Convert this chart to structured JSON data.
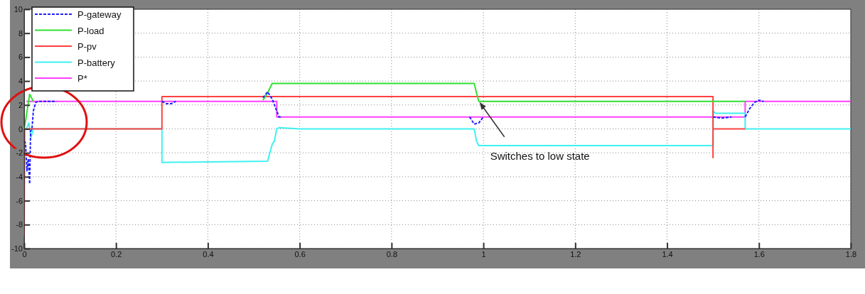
{
  "chart_data": {
    "type": "line",
    "xlim": [
      0,
      1.8
    ],
    "xticks": [
      0,
      0.2,
      0.4,
      0.6,
      0.8,
      1,
      1.2,
      1.4,
      1.6,
      1.8
    ],
    "ylim": [
      -10,
      10
    ],
    "yticks": [
      -10,
      -8,
      -6,
      -4,
      -2,
      0,
      2,
      4,
      6,
      8,
      10
    ],
    "grid": true,
    "legend": "top left",
    "series": [
      {
        "name": "P-gateway",
        "color": "#2020ff",
        "line_style": "dashed",
        "x": [
          0,
          0.003,
          0.006,
          0.009,
          0.012,
          0.014,
          0.017,
          0.02,
          0.025,
          0.03,
          0.045,
          0.07,
          0.071,
          0.3,
          0.31,
          0.32,
          0.33,
          0.331,
          0.52,
          0.53,
          0.54,
          0.55,
          0.555,
          0.56,
          0.561,
          0.97,
          0.98,
          0.99,
          1.0,
          1.001,
          1.5,
          1.52,
          1.54,
          1.541,
          1.57,
          1.58,
          1.59,
          1.6,
          1.61
        ],
        "values": [
          -1,
          -1.2,
          -3.5,
          -2.5,
          -4.6,
          -0.2,
          0,
          1.5,
          2.2,
          2.3,
          2.3,
          2.3,
          null,
          2.3,
          2.1,
          2.1,
          2.3,
          null,
          2.6,
          3.1,
          2.5,
          1.5,
          1.0,
          1.0,
          null,
          1.0,
          0.4,
          0.5,
          1.0,
          null,
          1.0,
          0.9,
          1.0,
          null,
          1.0,
          1.7,
          2.2,
          2.4,
          2.3
        ]
      },
      {
        "name": "P-load",
        "color": "#30e030",
        "x": [
          0,
          0.004,
          0.012,
          0.02,
          0.021,
          0.52,
          0.53,
          0.54,
          0.98,
          0.985,
          0.99,
          1.57
        ],
        "values": [
          0,
          0.9,
          2.9,
          2.3,
          null,
          2.4,
          3.0,
          3.8,
          3.8,
          3.0,
          2.3,
          2.3
        ]
      },
      {
        "name": "P-pv",
        "color": "#ff4040",
        "x": [
          0,
          0.001,
          0.3,
          0.3,
          1.5,
          1.5,
          1.5,
          1.57
        ],
        "values": [
          -9,
          0,
          0,
          2.7,
          2.7,
          -2.4,
          0,
          0
        ]
      },
      {
        "name": "P-battery",
        "color": "#40f0f0",
        "x": [
          0,
          0.005,
          0.01,
          0.015,
          0.02,
          0.3,
          0.3,
          0.53,
          0.54,
          0.545,
          0.55,
          0.555,
          0.6,
          0.98,
          0.985,
          0.99,
          1.5,
          1.5,
          1.505,
          1.57,
          1.57,
          1.8
        ],
        "values": [
          0,
          0,
          0.5,
          -0.7,
          0,
          0,
          -2.8,
          -2.7,
          -1.3,
          -1.0,
          0,
          0.1,
          0,
          0,
          -1.0,
          -1.4,
          -1.4,
          1.5,
          1.3,
          1.3,
          0,
          0
        ]
      },
      {
        "name": "P*",
        "color": "#ff40ff",
        "x": [
          0.005,
          0.55,
          0.55,
          1.57,
          1.57,
          1.8
        ],
        "values": [
          2.3,
          2.3,
          1.0,
          1.0,
          2.3,
          2.3
        ]
      }
    ],
    "annotations": [
      {
        "text": "Switches to low state",
        "x": 0.99,
        "y": 2.3
      }
    ]
  }
}
